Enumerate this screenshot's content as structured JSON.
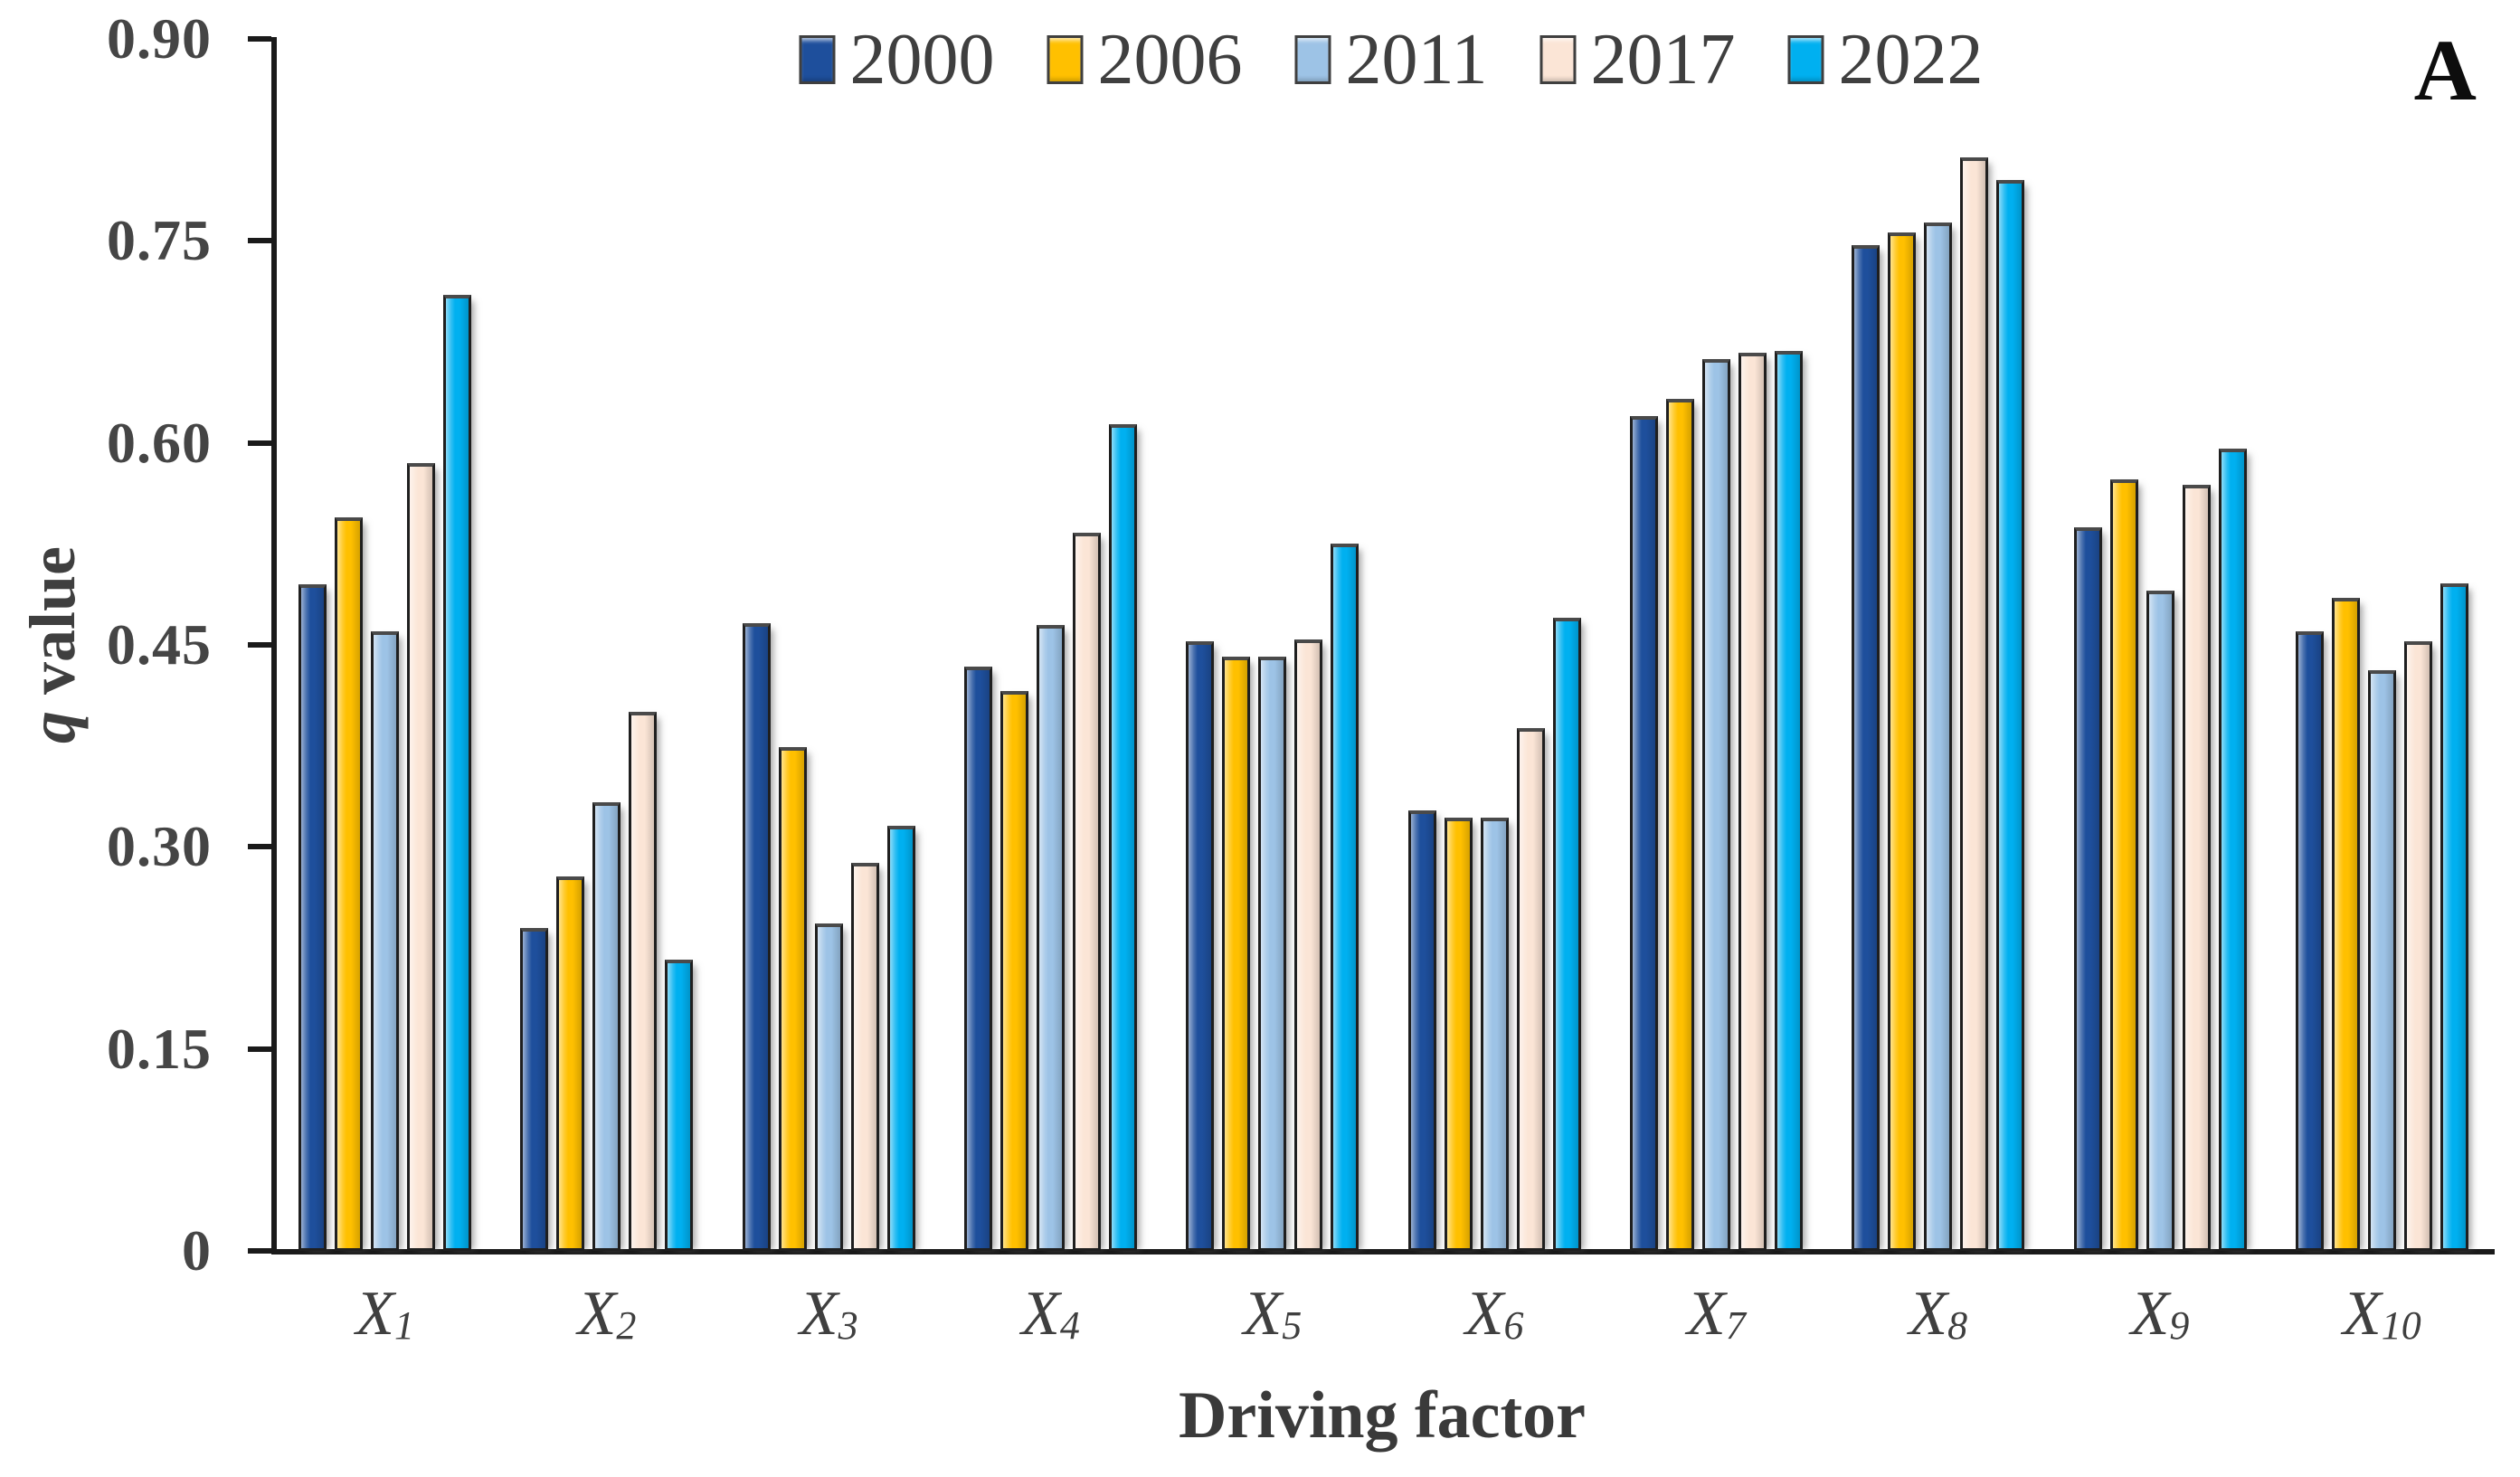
{
  "panel_label": "A",
  "y_axis": {
    "title_italic": "q",
    "title_rest": " value",
    "ticks": [
      {
        "label": "0",
        "value": 0
      },
      {
        "label": "0.15",
        "value": 0.15
      },
      {
        "label": "0.30",
        "value": 0.3
      },
      {
        "label": "0.45",
        "value": 0.45
      },
      {
        "label": "0.60",
        "value": 0.6
      },
      {
        "label": "0.75",
        "value": 0.75
      },
      {
        "label": "0.90",
        "value": 0.9
      }
    ]
  },
  "x_axis": {
    "title": "Driving factor",
    "category_labels": [
      {
        "base": "X",
        "sub": "1"
      },
      {
        "base": "X",
        "sub": "2"
      },
      {
        "base": "X",
        "sub": "3"
      },
      {
        "base": "X",
        "sub": "4"
      },
      {
        "base": "X",
        "sub": "5"
      },
      {
        "base": "X",
        "sub": "6"
      },
      {
        "base": "X",
        "sub": "7"
      },
      {
        "base": "X",
        "sub": "8"
      },
      {
        "base": "X",
        "sub": "9"
      },
      {
        "base": "X",
        "sub": "10"
      }
    ]
  },
  "legend": {
    "position": "top-center",
    "items": [
      "2000",
      "2006",
      "2011",
      "2017",
      "2022"
    ]
  },
  "colors": {
    "series_2000": "#1E4F9C",
    "series_2006": "#FFC000",
    "series_2011": "#9DC3E6",
    "series_2017": "#FBE5D6",
    "series_2022": "#00B0F0",
    "axis": "#1A1A1A",
    "text": "#3D3D3D"
  },
  "chart_data": {
    "type": "bar",
    "title": "",
    "xlabel": "Driving factor",
    "ylabel": "q value",
    "ylim": [
      0,
      0.9
    ],
    "yticks": [
      0,
      0.15,
      0.3,
      0.45,
      0.6,
      0.75,
      0.9
    ],
    "grid": false,
    "legend_position": "top-center",
    "categories": [
      "X1",
      "X2",
      "X3",
      "X4",
      "X5",
      "X6",
      "X7",
      "X8",
      "X9",
      "X10"
    ],
    "series": [
      {
        "name": "2000",
        "color": "#1E4F9C",
        "values": [
          0.495,
          0.24,
          0.466,
          0.434,
          0.453,
          0.327,
          0.62,
          0.747,
          0.537,
          0.46
        ]
      },
      {
        "name": "2006",
        "color": "#FFC000",
        "values": [
          0.545,
          0.278,
          0.374,
          0.416,
          0.441,
          0.322,
          0.633,
          0.756,
          0.573,
          0.485
        ]
      },
      {
        "name": "2011",
        "color": "#9DC3E6",
        "values": [
          0.46,
          0.333,
          0.243,
          0.465,
          0.441,
          0.322,
          0.662,
          0.764,
          0.49,
          0.431
        ]
      },
      {
        "name": "2017",
        "color": "#FBE5D6",
        "values": [
          0.585,
          0.4,
          0.288,
          0.533,
          0.454,
          0.388,
          0.667,
          0.812,
          0.569,
          0.453
        ]
      },
      {
        "name": "2022",
        "color": "#00B0F0",
        "values": [
          0.71,
          0.216,
          0.316,
          0.614,
          0.525,
          0.47,
          0.668,
          0.795,
          0.596,
          0.496
        ]
      }
    ]
  }
}
